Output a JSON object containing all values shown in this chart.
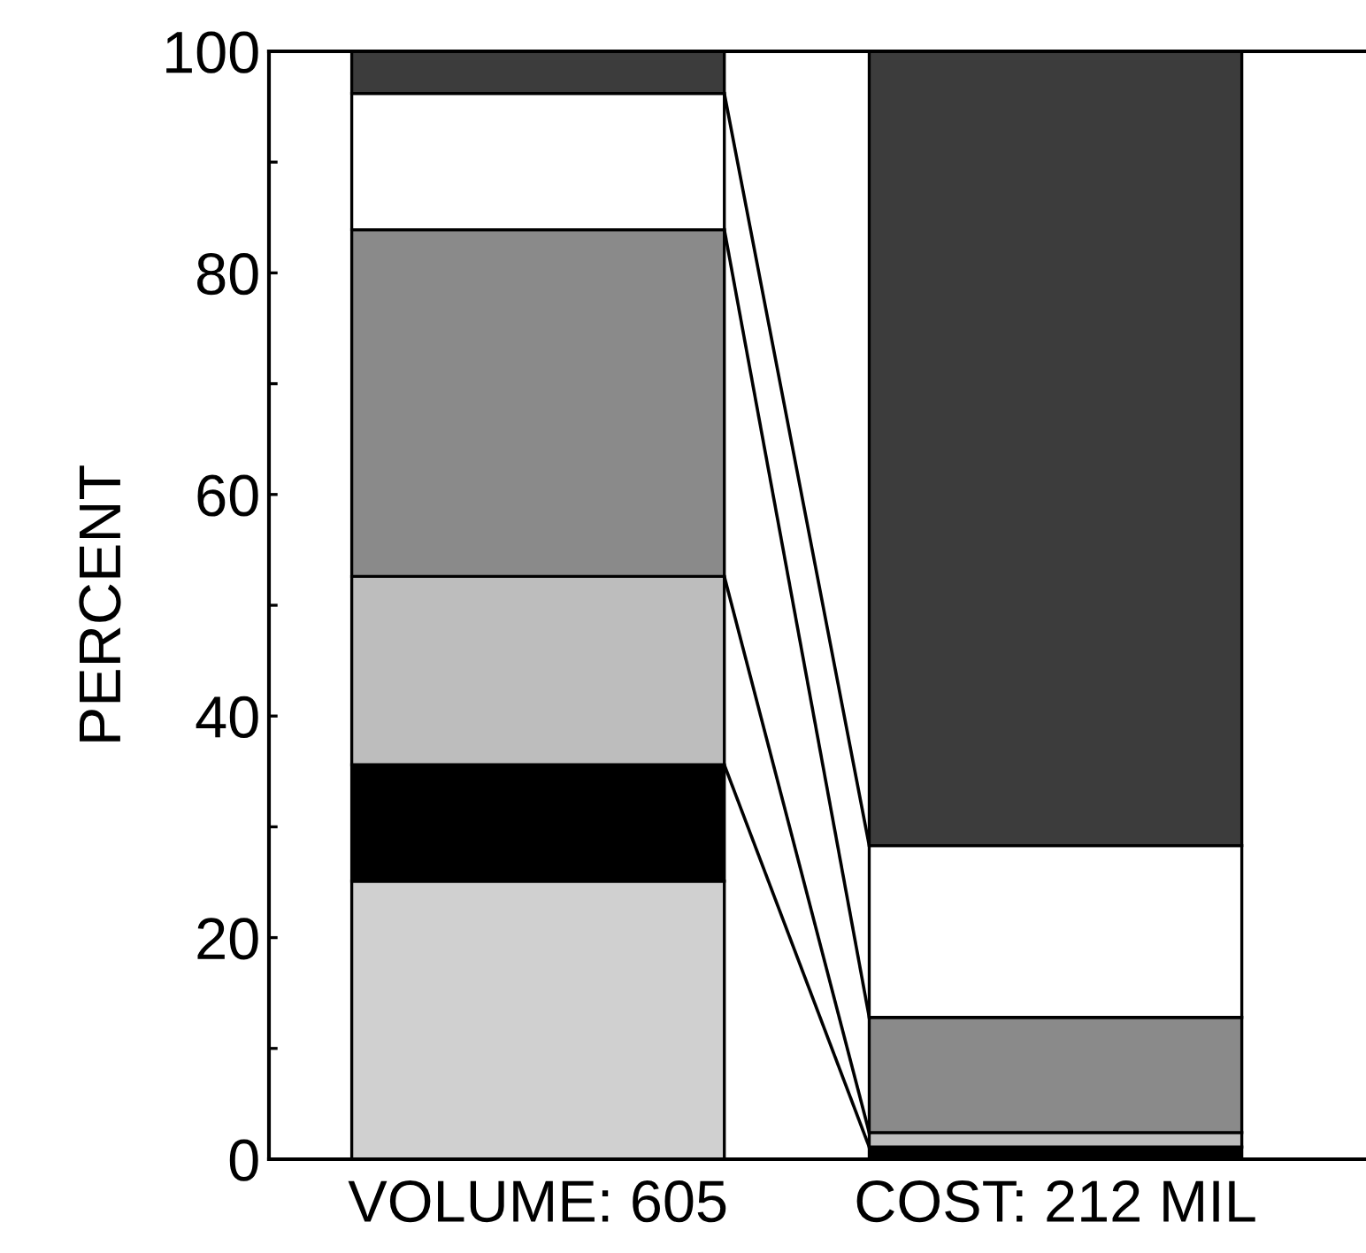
{
  "chart_data": {
    "type": "bar",
    "stacked": true,
    "ylabel": "PERCENT",
    "categories": [
      "VOLUME: 605",
      "COST: 212 MIL"
    ],
    "series": [
      {
        "color": "#d0d0d0",
        "values": [
          25.1,
          null
        ]
      },
      {
        "color": "#000000",
        "values": [
          10.5,
          1.1
        ]
      },
      {
        "color": "#bdbdbd",
        "values": [
          17.0,
          1.3
        ]
      },
      {
        "color": "#8a8a8a",
        "values": [
          31.3,
          10.4
        ]
      },
      {
        "color": "#ffffff",
        "values": [
          12.3,
          15.5
        ]
      },
      {
        "color": "#3c3c3c",
        "values": [
          3.8,
          71.7
        ]
      }
    ],
    "ylim": [
      0,
      100
    ],
    "yticks": [
      0,
      {
        "value": 10,
        "label": null
      },
      20,
      {
        "value": 30,
        "label": null
      },
      40,
      {
        "value": 50,
        "label": null
      },
      60,
      {
        "value": 70,
        "label": null
      },
      80,
      {
        "value": 90,
        "label": null
      },
      100
    ],
    "grid": false,
    "legend": false
  }
}
